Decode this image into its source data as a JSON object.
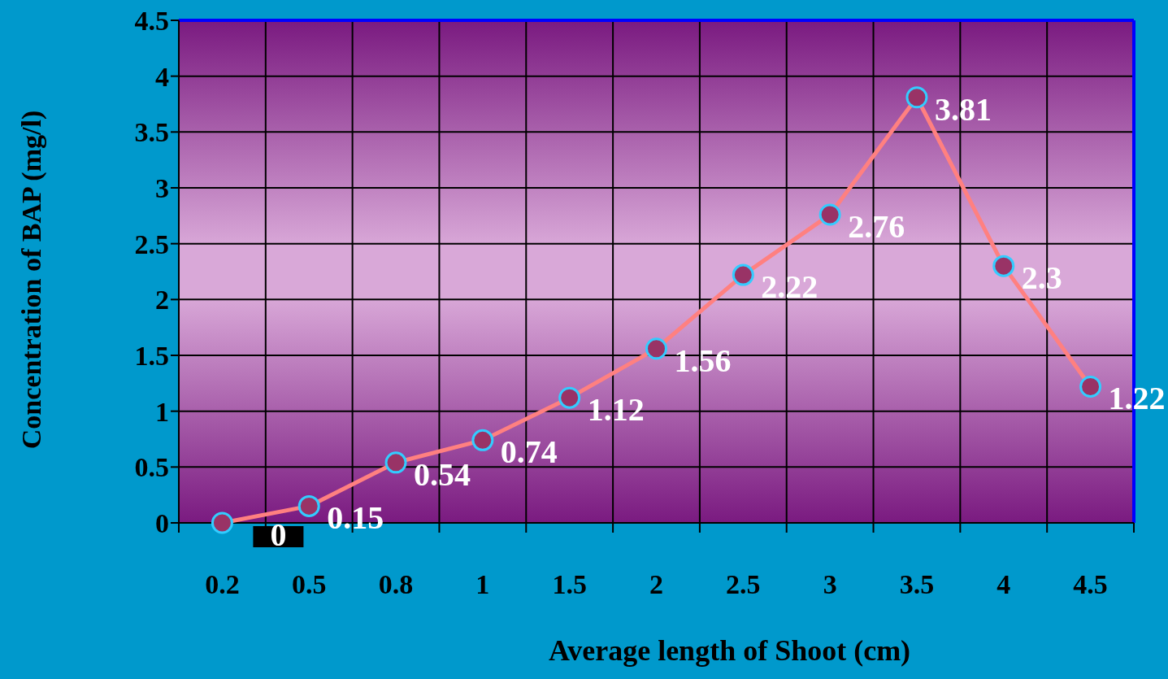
{
  "chart_data": {
    "type": "line",
    "xlabel": "Average length of Shoot (cm)",
    "ylabel": "Concentration of BAP (mg/l)",
    "categories": [
      "0.2",
      "0.5",
      "0.8",
      "1",
      "1.5",
      "2",
      "2.5",
      "3",
      "3.5",
      "4",
      "4.5"
    ],
    "series": [
      {
        "color": "#ff8080",
        "values": [
          0,
          0.15,
          0.54,
          0.74,
          1.12,
          1.56,
          2.22,
          2.76,
          3.81,
          2.3,
          1.22
        ]
      }
    ],
    "ylim": [
      0,
      4.5
    ],
    "yticks": [
      0,
      0.5,
      1,
      1.5,
      2,
      2.5,
      3,
      3.5,
      4,
      4.5
    ],
    "grid": true,
    "marker": "circle",
    "line_style": "solid",
    "data_labels": true
  }
}
